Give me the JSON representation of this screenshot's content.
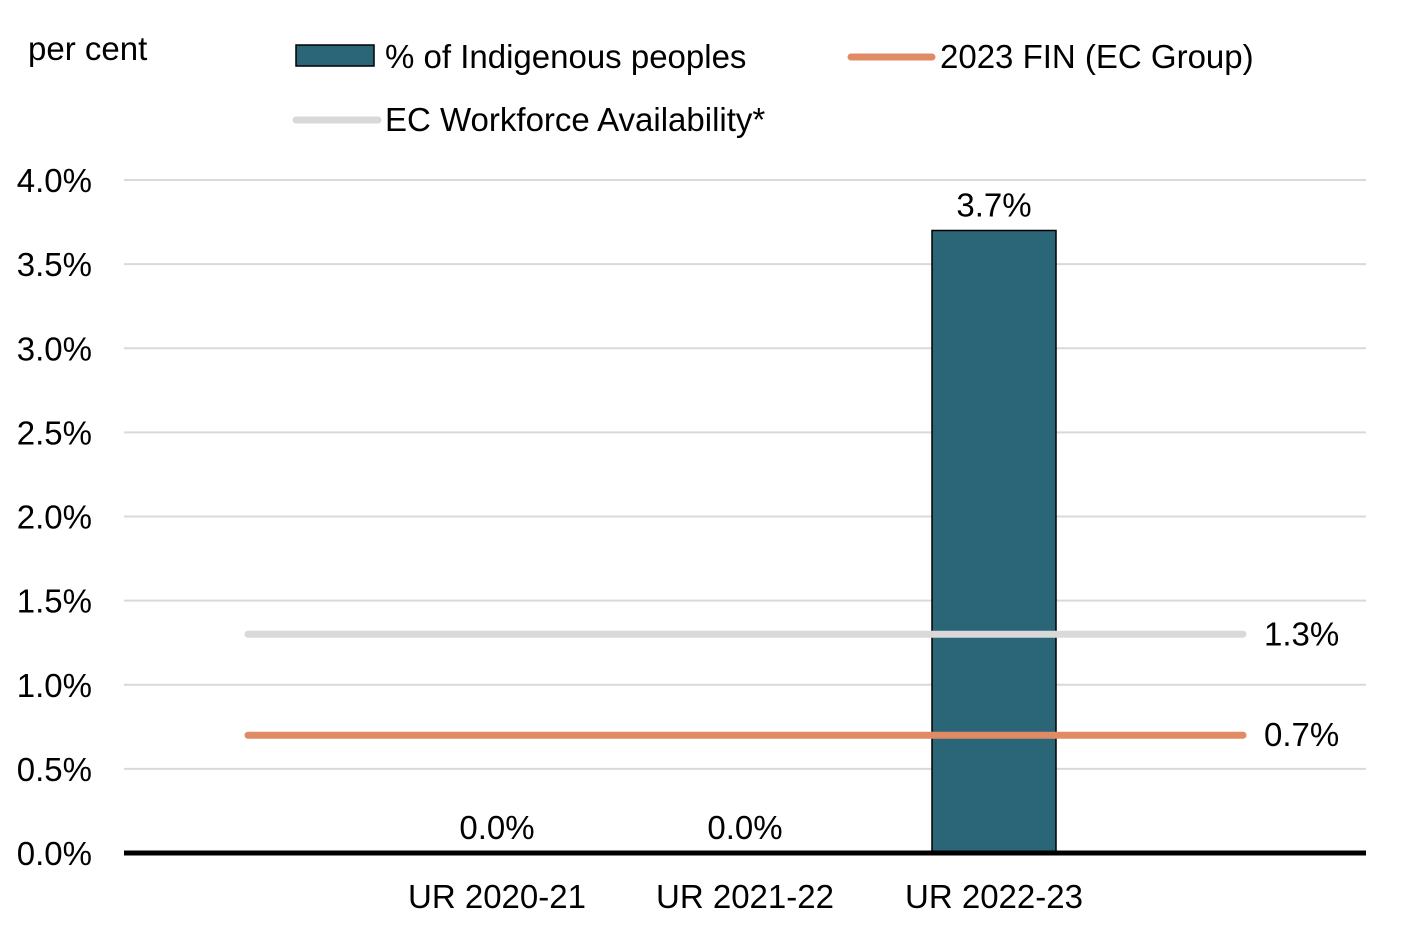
{
  "chart_data": {
    "type": "bar",
    "unit_label": "per cent",
    "categories": [
      "UR 2020-21",
      "UR 2021-22",
      "UR 2022-23"
    ],
    "series": [
      {
        "name": "% of Indigenous peoples",
        "kind": "bar",
        "color": "#2a6677",
        "values": [
          0.0,
          0.0,
          3.7
        ],
        "data_labels": [
          "0.0%",
          "0.0%",
          "3.7%"
        ]
      },
      {
        "name": "2023 FIN (EC Group)",
        "kind": "line",
        "color": "#e08a66",
        "value": 0.7,
        "end_label": "0.7%"
      },
      {
        "name": "EC Workforce Availability*",
        "kind": "line",
        "color": "#d9d9d9",
        "value": 1.3,
        "end_label": "1.3%"
      }
    ],
    "ylim": [
      0,
      4.0
    ],
    "yticks": [
      "0.0%",
      "0.5%",
      "1.0%",
      "1.5%",
      "2.0%",
      "2.5%",
      "3.0%",
      "3.5%",
      "4.0%"
    ],
    "grid": true,
    "legend_position": "top"
  }
}
